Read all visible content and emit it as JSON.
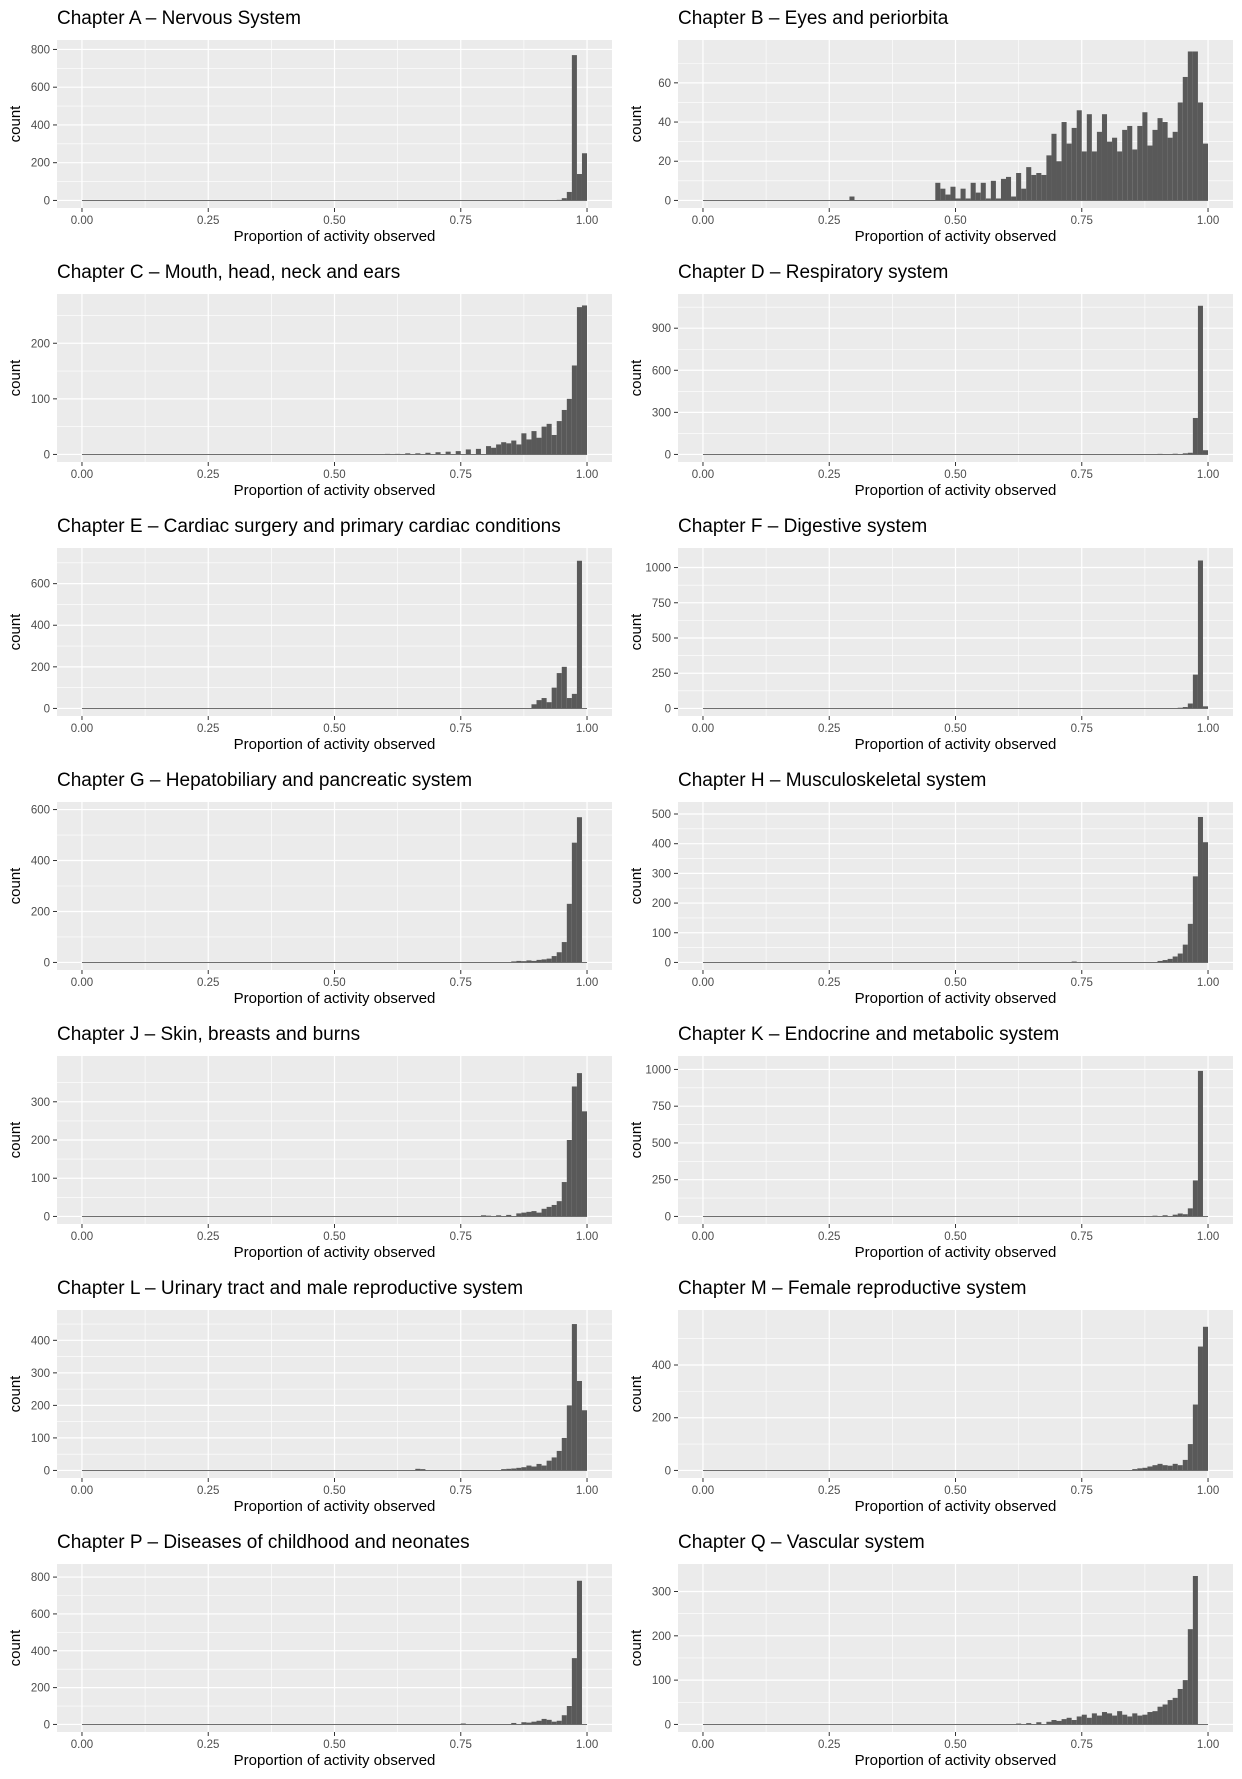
{
  "style": {
    "panel_background": "#ebebeb",
    "grid_major": "#ffffff",
    "bar_fill": "#595959",
    "tick_text": "#4d4d4d",
    "title_text": "#000000"
  },
  "chart_data": [
    {
      "type": "bar",
      "title": "Chapter A – Nervous System",
      "xlabel": "Proportion of activity observed",
      "ylabel": "count",
      "xlim": [
        0,
        1
      ],
      "xticks": [
        "0.00",
        "0.25",
        "0.50",
        "0.75",
        "1.00"
      ],
      "ylim": [
        0,
        810
      ],
      "yticks": [
        0,
        200,
        400,
        600,
        800
      ],
      "bins": [
        [
          0.94,
          3
        ],
        [
          0.95,
          12
        ],
        [
          0.96,
          45
        ],
        [
          0.97,
          770
        ],
        [
          0.98,
          140
        ],
        [
          0.99,
          250
        ]
      ]
    },
    {
      "type": "bar",
      "title": "Chapter B – Eyes and periorbita",
      "xlabel": "Proportion of activity observed",
      "ylabel": "count",
      "xlim": [
        0,
        1
      ],
      "xticks": [
        "0.00",
        "0.25",
        "0.50",
        "0.75",
        "1.00"
      ],
      "ylim": [
        0,
        78
      ],
      "yticks": [
        0,
        20,
        40,
        60
      ],
      "bins": [
        [
          0.29,
          2
        ],
        [
          0.46,
          9
        ],
        [
          0.47,
          6
        ],
        [
          0.48,
          3
        ],
        [
          0.49,
          7
        ],
        [
          0.5,
          1
        ],
        [
          0.51,
          6
        ],
        [
          0.52,
          1
        ],
        [
          0.53,
          9
        ],
        [
          0.54,
          4
        ],
        [
          0.55,
          9
        ],
        [
          0.56,
          1
        ],
        [
          0.57,
          10
        ],
        [
          0.58,
          1
        ],
        [
          0.59,
          11
        ],
        [
          0.6,
          12
        ],
        [
          0.61,
          2
        ],
        [
          0.62,
          14
        ],
        [
          0.63,
          6
        ],
        [
          0.64,
          17
        ],
        [
          0.65,
          13
        ],
        [
          0.66,
          14
        ],
        [
          0.67,
          13
        ],
        [
          0.68,
          23
        ],
        [
          0.69,
          34
        ],
        [
          0.7,
          20
        ],
        [
          0.71,
          40
        ],
        [
          0.72,
          29
        ],
        [
          0.73,
          37
        ],
        [
          0.74,
          46
        ],
        [
          0.75,
          25
        ],
        [
          0.76,
          44
        ],
        [
          0.77,
          25
        ],
        [
          0.78,
          35
        ],
        [
          0.79,
          44
        ],
        [
          0.8,
          30
        ],
        [
          0.81,
          32
        ],
        [
          0.82,
          25
        ],
        [
          0.83,
          36
        ],
        [
          0.84,
          38
        ],
        [
          0.85,
          26
        ],
        [
          0.86,
          38
        ],
        [
          0.87,
          45
        ],
        [
          0.88,
          28
        ],
        [
          0.89,
          36
        ],
        [
          0.9,
          42
        ],
        [
          0.91,
          40
        ],
        [
          0.92,
          32
        ],
        [
          0.93,
          35
        ],
        [
          0.94,
          50
        ],
        [
          0.95,
          63
        ],
        [
          0.96,
          76
        ],
        [
          0.97,
          76
        ],
        [
          0.98,
          50
        ],
        [
          0.99,
          29
        ]
      ]
    },
    {
      "type": "bar",
      "title": "Chapter C – Mouth, head, neck and ears",
      "xlabel": "Proportion of activity observed",
      "ylabel": "count",
      "xlim": [
        0,
        1
      ],
      "xticks": [
        "0.00",
        "0.25",
        "0.50",
        "0.75",
        "1.00"
      ],
      "ylim": [
        0,
        275
      ],
      "yticks": [
        0,
        100,
        200
      ],
      "bins": [
        [
          0.6,
          1
        ],
        [
          0.62,
          1
        ],
        [
          0.64,
          2
        ],
        [
          0.66,
          2
        ],
        [
          0.68,
          3
        ],
        [
          0.7,
          4
        ],
        [
          0.72,
          5
        ],
        [
          0.74,
          6
        ],
        [
          0.76,
          9
        ],
        [
          0.78,
          10
        ],
        [
          0.8,
          15
        ],
        [
          0.81,
          12
        ],
        [
          0.82,
          18
        ],
        [
          0.83,
          22
        ],
        [
          0.84,
          20
        ],
        [
          0.85,
          25
        ],
        [
          0.86,
          18
        ],
        [
          0.87,
          38
        ],
        [
          0.88,
          27
        ],
        [
          0.89,
          42
        ],
        [
          0.9,
          30
        ],
        [
          0.91,
          50
        ],
        [
          0.92,
          55
        ],
        [
          0.93,
          35
        ],
        [
          0.94,
          60
        ],
        [
          0.95,
          80
        ],
        [
          0.96,
          100
        ],
        [
          0.97,
          160
        ],
        [
          0.98,
          265
        ],
        [
          0.99,
          268
        ]
      ]
    },
    {
      "type": "bar",
      "title": "Chapter D – Respiratory system",
      "xlabel": "Proportion of activity observed",
      "ylabel": "count",
      "xlim": [
        0,
        1
      ],
      "xticks": [
        "0.00",
        "0.25",
        "0.50",
        "0.75",
        "1.00"
      ],
      "ylim": [
        0,
        1090
      ],
      "yticks": [
        0,
        300,
        600,
        900
      ],
      "bins": [
        [
          0.86,
          3
        ],
        [
          0.9,
          4
        ],
        [
          0.93,
          5
        ],
        [
          0.95,
          8
        ],
        [
          0.96,
          12
        ],
        [
          0.97,
          260
        ],
        [
          0.98,
          1060
        ],
        [
          0.99,
          30
        ]
      ]
    },
    {
      "type": "bar",
      "title": "Chapter E – Cardiac surgery and primary cardiac conditions",
      "xlabel": "Proportion of activity observed",
      "ylabel": "count",
      "xlim": [
        0,
        1
      ],
      "xticks": [
        "0.00",
        "0.25",
        "0.50",
        "0.75",
        "1.00"
      ],
      "ylim": [
        0,
        735
      ],
      "yticks": [
        0,
        200,
        400,
        600
      ],
      "bins": [
        [
          0.89,
          20
        ],
        [
          0.9,
          40
        ],
        [
          0.91,
          50
        ],
        [
          0.92,
          30
        ],
        [
          0.93,
          100
        ],
        [
          0.94,
          170
        ],
        [
          0.95,
          200
        ],
        [
          0.96,
          50
        ],
        [
          0.97,
          70
        ],
        [
          0.98,
          710
        ]
      ]
    },
    {
      "type": "bar",
      "title": "Chapter F – Digestive system",
      "xlabel": "Proportion of activity observed",
      "ylabel": "count",
      "xlim": [
        0,
        1
      ],
      "xticks": [
        "0.00",
        "0.25",
        "0.50",
        "0.75",
        "1.00"
      ],
      "ylim": [
        0,
        1085
      ],
      "yticks": [
        0,
        250,
        500,
        750,
        1000
      ],
      "bins": [
        [
          0.94,
          5
        ],
        [
          0.95,
          10
        ],
        [
          0.96,
          35
        ],
        [
          0.97,
          240
        ],
        [
          0.98,
          1050
        ],
        [
          0.99,
          15
        ]
      ]
    },
    {
      "type": "bar",
      "title": "Chapter G – Hepatobiliary and pancreatic system",
      "xlabel": "Proportion of activity observed",
      "ylabel": "count",
      "xlim": [
        0,
        1
      ],
      "xticks": [
        "0.00",
        "0.25",
        "0.50",
        "0.75",
        "1.00"
      ],
      "ylim": [
        0,
        600
      ],
      "yticks": [
        0,
        200,
        400,
        600
      ],
      "bins": [
        [
          0.85,
          4
        ],
        [
          0.86,
          6
        ],
        [
          0.87,
          5
        ],
        [
          0.88,
          8
        ],
        [
          0.89,
          6
        ],
        [
          0.9,
          10
        ],
        [
          0.91,
          12
        ],
        [
          0.92,
          15
        ],
        [
          0.93,
          25
        ],
        [
          0.94,
          40
        ],
        [
          0.95,
          80
        ],
        [
          0.96,
          230
        ],
        [
          0.97,
          470
        ],
        [
          0.98,
          570
        ]
      ]
    },
    {
      "type": "bar",
      "title": "Chapter H – Musculoskeletal system",
      "xlabel": "Proportion of activity observed",
      "ylabel": "count",
      "xlim": [
        0,
        1
      ],
      "xticks": [
        "0.00",
        "0.25",
        "0.50",
        "0.75",
        "1.00"
      ],
      "ylim": [
        0,
        515
      ],
      "yticks": [
        0,
        100,
        200,
        300,
        400,
        500
      ],
      "bins": [
        [
          0.73,
          3
        ],
        [
          0.9,
          5
        ],
        [
          0.91,
          8
        ],
        [
          0.92,
          12
        ],
        [
          0.93,
          20
        ],
        [
          0.94,
          30
        ],
        [
          0.95,
          60
        ],
        [
          0.96,
          130
        ],
        [
          0.97,
          290
        ],
        [
          0.98,
          490
        ],
        [
          0.99,
          405
        ]
      ]
    },
    {
      "type": "bar",
      "title": "Chapter J – Skin, breasts and burns",
      "xlabel": "Proportion of activity observed",
      "ylabel": "count",
      "xlim": [
        0,
        1
      ],
      "xticks": [
        "0.00",
        "0.25",
        "0.50",
        "0.75",
        "1.00"
      ],
      "ylim": [
        0,
        400
      ],
      "yticks": [
        0,
        100,
        200,
        300
      ],
      "bins": [
        [
          0.79,
          3
        ],
        [
          0.8,
          2
        ],
        [
          0.82,
          3
        ],
        [
          0.84,
          4
        ],
        [
          0.86,
          8
        ],
        [
          0.87,
          10
        ],
        [
          0.88,
          12
        ],
        [
          0.89,
          14
        ],
        [
          0.9,
          10
        ],
        [
          0.91,
          20
        ],
        [
          0.92,
          25
        ],
        [
          0.93,
          30
        ],
        [
          0.94,
          40
        ],
        [
          0.95,
          90
        ],
        [
          0.96,
          200
        ],
        [
          0.97,
          340
        ],
        [
          0.98,
          375
        ],
        [
          0.99,
          275
        ]
      ]
    },
    {
      "type": "bar",
      "title": "Chapter K – Endocrine and metabolic system",
      "xlabel": "Proportion of activity observed",
      "ylabel": "count",
      "xlim": [
        0,
        1
      ],
      "xticks": [
        "0.00",
        "0.25",
        "0.50",
        "0.75",
        "1.00"
      ],
      "ylim": [
        0,
        1040
      ],
      "yticks": [
        0,
        250,
        500,
        750,
        1000
      ],
      "bins": [
        [
          0.89,
          5
        ],
        [
          0.91,
          8
        ],
        [
          0.93,
          12
        ],
        [
          0.94,
          20
        ],
        [
          0.95,
          15
        ],
        [
          0.96,
          55
        ],
        [
          0.97,
          245
        ],
        [
          0.98,
          990
        ]
      ]
    },
    {
      "type": "bar",
      "title": "Chapter L – Urinary tract and male reproductive system",
      "xlabel": "Proportion of activity observed",
      "ylabel": "count",
      "xlim": [
        0,
        1
      ],
      "xticks": [
        "0.00",
        "0.25",
        "0.50",
        "0.75",
        "1.00"
      ],
      "ylim": [
        0,
        470
      ],
      "yticks": [
        0,
        100,
        200,
        300,
        400
      ],
      "bins": [
        [
          0.66,
          5
        ],
        [
          0.67,
          4
        ],
        [
          0.83,
          4
        ],
        [
          0.84,
          5
        ],
        [
          0.85,
          6
        ],
        [
          0.86,
          8
        ],
        [
          0.87,
          10
        ],
        [
          0.88,
          15
        ],
        [
          0.89,
          12
        ],
        [
          0.9,
          20
        ],
        [
          0.91,
          15
        ],
        [
          0.92,
          30
        ],
        [
          0.93,
          40
        ],
        [
          0.94,
          60
        ],
        [
          0.95,
          100
        ],
        [
          0.96,
          200
        ],
        [
          0.97,
          450
        ],
        [
          0.98,
          275
        ],
        [
          0.99,
          185
        ]
      ]
    },
    {
      "type": "bar",
      "title": "Chapter M – Female reproductive system",
      "xlabel": "Proportion of activity observed",
      "ylabel": "count",
      "xlim": [
        0,
        1
      ],
      "xticks": [
        "0.00",
        "0.25",
        "0.50",
        "0.75",
        "1.00"
      ],
      "ylim": [
        0,
        580
      ],
      "yticks": [
        0,
        200,
        400
      ],
      "bins": [
        [
          0.85,
          5
        ],
        [
          0.86,
          8
        ],
        [
          0.87,
          10
        ],
        [
          0.88,
          15
        ],
        [
          0.89,
          20
        ],
        [
          0.9,
          25
        ],
        [
          0.91,
          20
        ],
        [
          0.92,
          18
        ],
        [
          0.93,
          25
        ],
        [
          0.94,
          20
        ],
        [
          0.95,
          40
        ],
        [
          0.96,
          100
        ],
        [
          0.97,
          250
        ],
        [
          0.98,
          470
        ],
        [
          0.99,
          545
        ]
      ]
    },
    {
      "type": "bar",
      "title": "Chapter P – Diseases of childhood and neonates",
      "xlabel": "Proportion of activity observed",
      "ylabel": "count",
      "xlim": [
        0,
        1
      ],
      "xticks": [
        "0.00",
        "0.25",
        "0.50",
        "0.75",
        "1.00"
      ],
      "ylim": [
        0,
        830
      ],
      "yticks": [
        0,
        200,
        400,
        600,
        800
      ],
      "bins": [
        [
          0.75,
          5
        ],
        [
          0.85,
          8
        ],
        [
          0.87,
          12
        ],
        [
          0.88,
          10
        ],
        [
          0.89,
          15
        ],
        [
          0.9,
          20
        ],
        [
          0.91,
          30
        ],
        [
          0.92,
          25
        ],
        [
          0.93,
          15
        ],
        [
          0.94,
          20
        ],
        [
          0.95,
          50
        ],
        [
          0.96,
          100
        ],
        [
          0.97,
          360
        ],
        [
          0.98,
          780
        ]
      ]
    },
    {
      "type": "bar",
      "title": "Chapter Q – Vascular system",
      "xlabel": "Proportion of activity observed",
      "ylabel": "count",
      "xlim": [
        0,
        1
      ],
      "xticks": [
        "0.00",
        "0.25",
        "0.50",
        "0.75",
        "1.00"
      ],
      "ylim": [
        0,
        345
      ],
      "yticks": [
        0,
        100,
        200,
        300
      ],
      "bins": [
        [
          0.62,
          2
        ],
        [
          0.64,
          3
        ],
        [
          0.66,
          5
        ],
        [
          0.68,
          6
        ],
        [
          0.69,
          10
        ],
        [
          0.7,
          8
        ],
        [
          0.71,
          12
        ],
        [
          0.72,
          15
        ],
        [
          0.73,
          10
        ],
        [
          0.74,
          18
        ],
        [
          0.75,
          22
        ],
        [
          0.76,
          15
        ],
        [
          0.77,
          25
        ],
        [
          0.78,
          20
        ],
        [
          0.79,
          28
        ],
        [
          0.8,
          25
        ],
        [
          0.81,
          20
        ],
        [
          0.82,
          30
        ],
        [
          0.83,
          22
        ],
        [
          0.84,
          18
        ],
        [
          0.85,
          25
        ],
        [
          0.86,
          20
        ],
        [
          0.87,
          22
        ],
        [
          0.88,
          28
        ],
        [
          0.89,
          30
        ],
        [
          0.9,
          40
        ],
        [
          0.91,
          45
        ],
        [
          0.92,
          55
        ],
        [
          0.93,
          60
        ],
        [
          0.94,
          80
        ],
        [
          0.95,
          100
        ],
        [
          0.96,
          215
        ],
        [
          0.97,
          335
        ]
      ]
    }
  ]
}
